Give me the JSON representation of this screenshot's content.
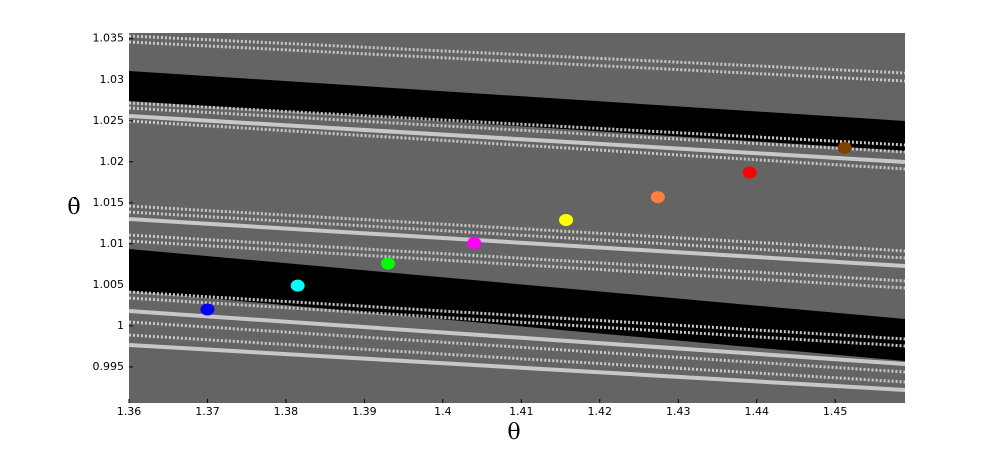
{
  "chart_data": {
    "type": "scatter",
    "x_label": "θ",
    "y_label": "θ̇",
    "x": [
      1.37,
      1.3815,
      1.393,
      1.404,
      1.4157,
      1.4274,
      1.4391,
      1.4512
    ],
    "values": [
      1.002,
      1.0049,
      1.0076,
      1.0101,
      1.0129,
      1.0157,
      1.0187,
      1.0217
    ],
    "colors": [
      "#0000ff",
      "#00ffff",
      "#00ff00",
      "#ff00ff",
      "#ffff00",
      "#ff8040",
      "#ff0000",
      "#804000"
    ],
    "xlim": [
      1.36,
      1.4589
    ],
    "ylim": [
      0.9906,
      1.0357
    ],
    "xticks": [
      1.36,
      1.37,
      1.38,
      1.39,
      1.4,
      1.41,
      1.42,
      1.43,
      1.44,
      1.45
    ],
    "yticks": [
      0.995,
      1,
      1.005,
      1.01,
      1.015,
      1.02,
      1.025,
      1.03,
      1.035
    ]
  }
}
